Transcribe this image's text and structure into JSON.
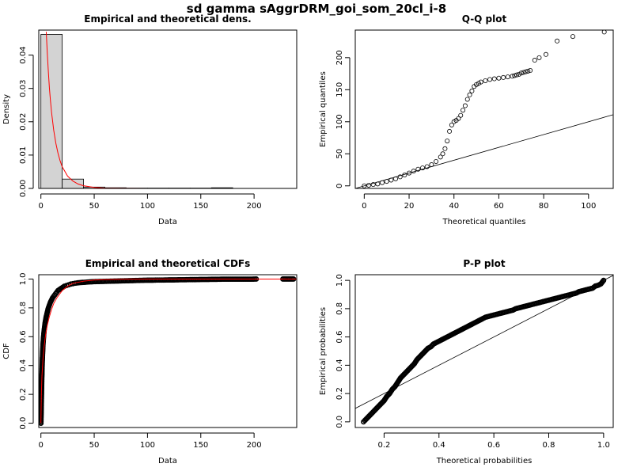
{
  "figure": {
    "title": "sd gamma sAggrDRM_goi_som_20cl_i-8"
  },
  "colors": {
    "theoretical_line": "#ff0000",
    "histogram_fill": "#d3d3d3",
    "points": "#000000"
  },
  "chart_data": [
    {
      "id": "density",
      "type": "bar",
      "title": "Empirical and theoretical dens.",
      "xlabel": "Data",
      "ylabel": "Density",
      "xlim": [
        -2,
        240
      ],
      "ylim": [
        0,
        0.0475
      ],
      "xticks": [
        0,
        50,
        100,
        150,
        200
      ],
      "yticks": [
        0,
        0.01,
        0.02,
        0.03,
        0.04
      ],
      "ytick_labels": [
        "0.00",
        "0.01",
        "0.02",
        "0.03",
        "0.04"
      ],
      "histogram": {
        "bin_edges": [
          0,
          20,
          40,
          60,
          80,
          100,
          120,
          140,
          160,
          180,
          200,
          220,
          240
        ],
        "density": [
          0.0462,
          0.0028,
          0.0004,
          0.0002,
          0.0001,
          0.0001,
          0.0001,
          0.0001,
          0.0002,
          0.0,
          0.0,
          0.0
        ]
      },
      "theoretical_curve": {
        "name": "gamma density",
        "x": [
          5,
          6,
          7,
          8,
          9,
          10,
          12,
          14,
          16,
          18,
          20,
          25,
          30,
          35,
          40,
          50,
          60,
          80,
          100,
          150,
          200,
          240
        ],
        "y": [
          0.047,
          0.0405,
          0.035,
          0.03,
          0.0262,
          0.0228,
          0.0175,
          0.0136,
          0.0106,
          0.0083,
          0.0065,
          0.0037,
          0.0022,
          0.0013,
          0.0008,
          0.0003,
          0.0001,
          2e-05,
          0.0,
          0.0,
          0.0,
          0.0
        ]
      }
    },
    {
      "id": "qq",
      "type": "scatter",
      "title": "Q-Q plot",
      "xlabel": "Theoretical quantiles",
      "ylabel": "Empirical quantiles",
      "xlim": [
        -4,
        111
      ],
      "ylim": [
        -4,
        243
      ],
      "xticks": [
        0,
        20,
        40,
        60,
        80,
        100
      ],
      "yticks": [
        0,
        50,
        100,
        150,
        200
      ],
      "reference_line": {
        "x": [
          -4,
          111
        ],
        "y": [
          -4,
          111
        ]
      },
      "points": {
        "x": [
          0,
          2,
          4,
          6,
          8,
          10,
          12,
          14,
          16,
          18,
          20,
          22,
          24,
          26,
          28,
          30,
          32,
          34,
          35,
          36,
          37,
          38,
          39,
          40,
          41,
          42,
          43,
          44,
          45,
          46,
          47,
          48,
          49,
          50,
          51,
          52,
          54,
          56,
          58,
          60,
          62,
          64,
          66,
          67,
          68,
          69,
          70,
          71,
          72,
          73,
          74,
          76,
          78,
          81,
          86,
          93,
          107
        ],
        "y": [
          0,
          1,
          2,
          3,
          5,
          7,
          9,
          11,
          14,
          17,
          20,
          23,
          26,
          28,
          30,
          33,
          38,
          45,
          50,
          58,
          70,
          85,
          95,
          100,
          102,
          105,
          110,
          118,
          125,
          135,
          142,
          148,
          155,
          158,
          160,
          162,
          164,
          166,
          167,
          168,
          169,
          170,
          171,
          172,
          173,
          174,
          176,
          177,
          178,
          179,
          180,
          196,
          200,
          205,
          226,
          233,
          240
        ]
      }
    },
    {
      "id": "cdf",
      "type": "scatter",
      "title": "Empirical and theoretical CDFs",
      "xlabel": "Data",
      "ylabel": "CDF",
      "xlim": [
        -2,
        240
      ],
      "ylim": [
        -0.03,
        1.03
      ],
      "xticks": [
        0,
        50,
        100,
        150,
        200
      ],
      "yticks": [
        0,
        0.2,
        0.4,
        0.6,
        0.8,
        1.0
      ],
      "ytick_labels": [
        "0.0",
        "0.2",
        "0.4",
        "0.6",
        "0.8",
        "1.0"
      ],
      "theoretical_curve": {
        "name": "gamma CDF",
        "x": [
          0,
          0.2,
          0.5,
          1,
          2,
          3,
          4,
          5,
          6,
          8,
          10,
          12,
          15,
          20,
          25,
          30,
          40,
          50,
          60,
          80,
          100,
          150,
          200,
          240
        ],
        "y": [
          0,
          0.1,
          0.22,
          0.33,
          0.45,
          0.53,
          0.59,
          0.64,
          0.68,
          0.74,
          0.79,
          0.83,
          0.87,
          0.92,
          0.95,
          0.97,
          0.985,
          0.993,
          0.996,
          0.999,
          1.0,
          1.0,
          1.0,
          1.0
        ]
      },
      "points": {
        "x": [
          0.05,
          0.1,
          0.2,
          0.3,
          0.4,
          0.5,
          0.7,
          0.9,
          1.1,
          1.4,
          1.7,
          2,
          2.5,
          3,
          3.5,
          4,
          5,
          6,
          7,
          8,
          9,
          10,
          11,
          12,
          13,
          14,
          15,
          16,
          17,
          18,
          19,
          20,
          21,
          22,
          24,
          26,
          28,
          30,
          32,
          35,
          38,
          42,
          45,
          50,
          55,
          60,
          65,
          70,
          75,
          80,
          85,
          90,
          95,
          100,
          105,
          110,
          115,
          120,
          125,
          130,
          135,
          140,
          145,
          150,
          155,
          160,
          165,
          170,
          178,
          198,
          202,
          227,
          237
        ],
        "y": [
          0.0,
          0.02,
          0.05,
          0.09,
          0.13,
          0.17,
          0.25,
          0.32,
          0.38,
          0.45,
          0.5,
          0.55,
          0.6,
          0.64,
          0.67,
          0.7,
          0.74,
          0.77,
          0.8,
          0.82,
          0.84,
          0.855,
          0.87,
          0.88,
          0.89,
          0.9,
          0.91,
          0.92,
          0.925,
          0.93,
          0.935,
          0.94,
          0.945,
          0.95,
          0.955,
          0.96,
          0.965,
          0.968,
          0.971,
          0.974,
          0.976,
          0.978,
          0.98,
          0.982,
          0.983,
          0.984,
          0.985,
          0.986,
          0.987,
          0.988,
          0.989,
          0.99,
          0.991,
          0.992,
          0.992,
          0.993,
          0.993,
          0.994,
          0.994,
          0.995,
          0.995,
          0.996,
          0.996,
          0.997,
          0.997,
          0.998,
          0.998,
          0.999,
          0.999,
          0.999,
          1.0,
          1.0,
          1.0
        ]
      }
    },
    {
      "id": "pp",
      "type": "scatter",
      "title": "P-P plot",
      "xlabel": "Theoretical probabilities",
      "ylabel": "Empirical probabilities",
      "xlim": [
        0.095,
        1.035
      ],
      "ylim": [
        -0.04,
        1.04
      ],
      "xticks": [
        0.2,
        0.4,
        0.6,
        0.8,
        1.0
      ],
      "xtick_labels": [
        "0.2",
        "0.4",
        "0.6",
        "0.8",
        "1.0"
      ],
      "yticks": [
        0,
        0.2,
        0.4,
        0.6,
        0.8,
        1.0
      ],
      "ytick_labels": [
        "0.0",
        "0.2",
        "0.4",
        "0.6",
        "0.8",
        "1.0"
      ],
      "reference_line": {
        "x": [
          0.095,
          1.035
        ],
        "y": [
          0.095,
          1.035
        ]
      },
      "points": {
        "x": [
          0.125,
          0.13,
          0.14,
          0.15,
          0.16,
          0.17,
          0.18,
          0.19,
          0.2,
          0.21,
          0.22,
          0.23,
          0.24,
          0.25,
          0.26,
          0.27,
          0.28,
          0.29,
          0.3,
          0.31,
          0.32,
          0.33,
          0.34,
          0.35,
          0.36,
          0.37,
          0.38,
          0.39,
          0.4,
          0.41,
          0.42,
          0.43,
          0.44,
          0.45,
          0.46,
          0.47,
          0.48,
          0.49,
          0.5,
          0.51,
          0.52,
          0.53,
          0.54,
          0.55,
          0.56,
          0.57,
          0.58,
          0.59,
          0.6,
          0.61,
          0.62,
          0.63,
          0.64,
          0.65,
          0.66,
          0.67,
          0.68,
          0.69,
          0.7,
          0.71,
          0.72,
          0.73,
          0.74,
          0.75,
          0.76,
          0.77,
          0.78,
          0.79,
          0.8,
          0.81,
          0.82,
          0.83,
          0.84,
          0.85,
          0.86,
          0.87,
          0.88,
          0.89,
          0.9,
          0.91,
          0.92,
          0.93,
          0.94,
          0.95,
          0.96,
          0.97,
          0.98,
          0.99,
          1.0
        ],
        "y": [
          0.0,
          0.01,
          0.03,
          0.05,
          0.07,
          0.09,
          0.11,
          0.13,
          0.15,
          0.18,
          0.2,
          0.23,
          0.25,
          0.28,
          0.31,
          0.33,
          0.35,
          0.37,
          0.39,
          0.41,
          0.44,
          0.46,
          0.48,
          0.5,
          0.52,
          0.53,
          0.55,
          0.56,
          0.57,
          0.58,
          0.59,
          0.6,
          0.61,
          0.62,
          0.63,
          0.64,
          0.65,
          0.66,
          0.67,
          0.68,
          0.69,
          0.7,
          0.71,
          0.72,
          0.73,
          0.74,
          0.745,
          0.75,
          0.755,
          0.76,
          0.765,
          0.77,
          0.775,
          0.78,
          0.785,
          0.79,
          0.8,
          0.805,
          0.81,
          0.815,
          0.82,
          0.825,
          0.83,
          0.835,
          0.84,
          0.845,
          0.85,
          0.855,
          0.86,
          0.865,
          0.87,
          0.875,
          0.88,
          0.885,
          0.89,
          0.895,
          0.9,
          0.905,
          0.91,
          0.92,
          0.925,
          0.93,
          0.935,
          0.94,
          0.945,
          0.96,
          0.965,
          0.975,
          1.0
        ]
      }
    }
  ]
}
